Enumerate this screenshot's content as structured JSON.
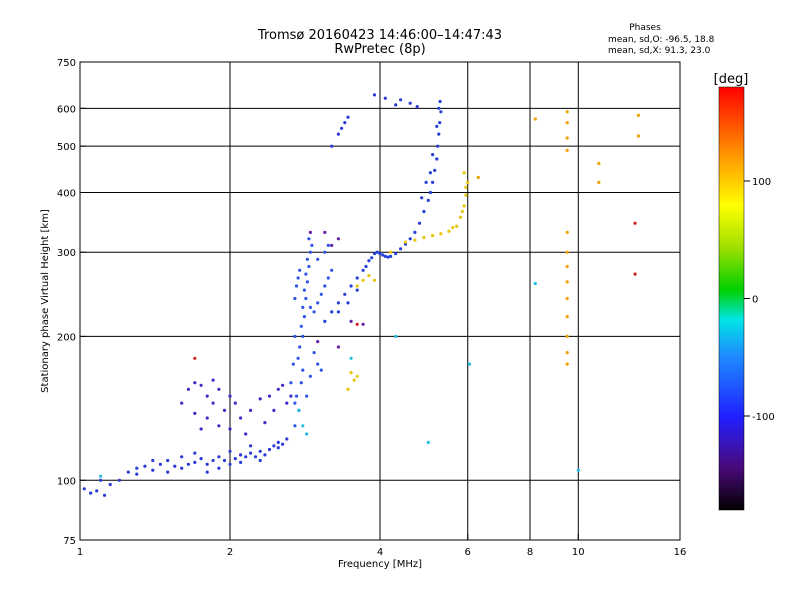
{
  "chart_data": {
    "type": "scatter",
    "title": "Tromsø 20160423 14:46:00–14:47:43",
    "subtitle": "RwPretec (8p)",
    "stats": {
      "heading": "Phases",
      "line_o": "mean, sd,O: -96.5, 18.8",
      "line_x": "mean, sd,X:  91.3, 23.0"
    },
    "xlabel": "Frequency [MHz]",
    "ylabel": "Stationary phase Virtual Height [km]",
    "x_scale": "log",
    "y_scale": "log",
    "xlim": [
      1,
      16
    ],
    "ylim": [
      75,
      750
    ],
    "x_ticks": [
      1,
      2,
      4,
      6,
      8,
      10,
      16
    ],
    "y_ticks": [
      75,
      100,
      200,
      300,
      400,
      500,
      600,
      750
    ],
    "x_grid": [
      2,
      4,
      6,
      8,
      10
    ],
    "y_grid": [
      100,
      200,
      300,
      400,
      500,
      600
    ],
    "grid": true,
    "colorbar": {
      "label": "[deg]",
      "range": [
        -180,
        180
      ],
      "ticks": [
        100,
        0,
        -100
      ],
      "placement": "right"
    },
    "series": [
      {
        "trace": "O-mode low (blue/purple)",
        "color": "#2a3bd8",
        "points": [
          [
            1.02,
            96
          ],
          [
            1.05,
            94
          ],
          [
            1.08,
            95
          ],
          [
            1.12,
            93
          ],
          [
            1.15,
            98
          ],
          [
            1.2,
            100
          ],
          [
            1.25,
            104
          ],
          [
            1.3,
            106
          ],
          [
            1.35,
            107
          ],
          [
            1.4,
            105
          ],
          [
            1.45,
            108
          ],
          [
            1.5,
            110
          ],
          [
            1.55,
            107
          ],
          [
            1.6,
            106
          ],
          [
            1.65,
            108
          ],
          [
            1.7,
            109
          ],
          [
            1.75,
            111
          ],
          [
            1.8,
            108
          ],
          [
            1.85,
            110
          ],
          [
            1.9,
            112
          ],
          [
            1.95,
            110
          ],
          [
            2.0,
            108
          ],
          [
            2.05,
            111
          ],
          [
            2.1,
            113
          ],
          [
            2.15,
            112
          ],
          [
            2.2,
            114
          ],
          [
            2.25,
            112
          ],
          [
            2.3,
            115
          ],
          [
            2.35,
            113
          ],
          [
            2.4,
            116
          ],
          [
            2.45,
            118
          ],
          [
            2.5,
            120
          ],
          [
            2.55,
            119
          ],
          [
            2.6,
            122
          ],
          [
            2.2,
            118
          ],
          [
            2.0,
            115
          ],
          [
            1.8,
            104
          ],
          [
            1.6,
            112
          ],
          [
            1.4,
            110
          ],
          [
            1.3,
            103
          ],
          [
            1.1,
            100
          ],
          [
            1.5,
            104
          ],
          [
            1.7,
            114
          ],
          [
            1.9,
            106
          ],
          [
            2.1,
            109
          ],
          [
            2.3,
            110
          ],
          [
            2.5,
            117
          ]
        ]
      },
      {
        "trace": "O-mode 130-170 km scatter",
        "color": "#3a2ec8",
        "points": [
          [
            1.65,
            155
          ],
          [
            1.7,
            160
          ],
          [
            1.75,
            158
          ],
          [
            1.8,
            150
          ],
          [
            1.85,
            145
          ],
          [
            1.9,
            155
          ],
          [
            1.95,
            140
          ],
          [
            2.0,
            150
          ],
          [
            1.8,
            135
          ],
          [
            1.9,
            130
          ],
          [
            2.05,
            145
          ],
          [
            2.1,
            135
          ],
          [
            1.75,
            128
          ],
          [
            2.2,
            140
          ],
          [
            2.3,
            148
          ],
          [
            2.4,
            150
          ],
          [
            2.5,
            155
          ],
          [
            2.55,
            158
          ],
          [
            2.45,
            140
          ],
          [
            2.35,
            132
          ],
          [
            1.6,
            145
          ],
          [
            1.7,
            138
          ],
          [
            2.0,
            128
          ],
          [
            2.15,
            125
          ],
          [
            2.6,
            145
          ],
          [
            2.65,
            150
          ],
          [
            1.85,
            162
          ]
        ]
      },
      {
        "trace": "O-mode near-vertical 2.6-3.2 MHz",
        "color": "#2f55e8",
        "points": [
          [
            2.7,
            130
          ],
          [
            2.75,
            140
          ],
          [
            2.72,
            150
          ],
          [
            2.78,
            160
          ],
          [
            2.8,
            170
          ],
          [
            2.74,
            180
          ],
          [
            2.76,
            190
          ],
          [
            2.8,
            200
          ],
          [
            2.78,
            210
          ],
          [
            2.82,
            220
          ],
          [
            2.8,
            230
          ],
          [
            2.84,
            240
          ],
          [
            2.82,
            250
          ],
          [
            2.86,
            260
          ],
          [
            2.84,
            270
          ],
          [
            2.88,
            280
          ],
          [
            2.86,
            290
          ],
          [
            2.9,
            300
          ],
          [
            2.92,
            310
          ],
          [
            2.88,
            320
          ],
          [
            2.7,
            240
          ],
          [
            2.72,
            255
          ],
          [
            2.74,
            265
          ],
          [
            2.76,
            275
          ],
          [
            2.9,
            230
          ],
          [
            2.95,
            225
          ],
          [
            3.0,
            235
          ],
          [
            3.05,
            245
          ],
          [
            3.1,
            255
          ],
          [
            3.15,
            265
          ],
          [
            3.2,
            275
          ],
          [
            3.0,
            290
          ],
          [
            3.1,
            300
          ],
          [
            3.15,
            310
          ],
          [
            2.95,
            185
          ],
          [
            3.0,
            175
          ],
          [
            3.05,
            170
          ],
          [
            2.9,
            165
          ],
          [
            2.85,
            150
          ],
          [
            2.7,
            145
          ],
          [
            2.65,
            160
          ],
          [
            2.68,
            175
          ],
          [
            2.7,
            200
          ]
        ]
      },
      {
        "trace": "O-mode rising F-layer",
        "color": "#2440d8",
        "points": [
          [
            3.1,
            215
          ],
          [
            3.2,
            225
          ],
          [
            3.3,
            235
          ],
          [
            3.4,
            245
          ],
          [
            3.5,
            255
          ],
          [
            3.6,
            265
          ],
          [
            3.7,
            275
          ],
          [
            3.75,
            280
          ],
          [
            3.8,
            288
          ],
          [
            3.85,
            292
          ],
          [
            3.9,
            298
          ],
          [
            3.95,
            300
          ],
          [
            4.0,
            298
          ],
          [
            4.05,
            296
          ],
          [
            4.1,
            294
          ],
          [
            4.15,
            293
          ],
          [
            4.2,
            294
          ],
          [
            4.3,
            298
          ],
          [
            4.4,
            305
          ],
          [
            4.5,
            312
          ],
          [
            4.6,
            320
          ],
          [
            4.7,
            330
          ],
          [
            4.8,
            345
          ],
          [
            4.9,
            365
          ],
          [
            5.0,
            385
          ],
          [
            5.05,
            400
          ],
          [
            5.1,
            420
          ],
          [
            5.15,
            445
          ],
          [
            5.2,
            470
          ],
          [
            5.22,
            500
          ],
          [
            5.25,
            530
          ],
          [
            5.27,
            560
          ],
          [
            5.3,
            590
          ],
          [
            5.28,
            620
          ],
          [
            5.25,
            600
          ],
          [
            5.2,
            550
          ],
          [
            5.1,
            480
          ],
          [
            5.05,
            440
          ],
          [
            4.95,
            420
          ],
          [
            4.85,
            390
          ],
          [
            3.6,
            250
          ],
          [
            3.45,
            235
          ],
          [
            3.3,
            225
          ]
        ]
      },
      {
        "trace": "high-altitude echoes 600 km",
        "color": "#2a3bd8",
        "points": [
          [
            3.3,
            530
          ],
          [
            3.35,
            545
          ],
          [
            3.4,
            560
          ],
          [
            3.45,
            575
          ],
          [
            3.2,
            500
          ],
          [
            3.9,
            640
          ],
          [
            4.1,
            630
          ],
          [
            4.3,
            610
          ],
          [
            4.4,
            625
          ],
          [
            4.6,
            615
          ],
          [
            4.75,
            605
          ]
        ]
      },
      {
        "trace": "X-mode (yellow/orange)",
        "color": "#e8c40a",
        "points": [
          [
            3.6,
            255
          ],
          [
            3.7,
            262
          ],
          [
            3.8,
            268
          ],
          [
            3.9,
            262
          ],
          [
            4.2,
            300
          ],
          [
            4.5,
            315
          ],
          [
            4.7,
            318
          ],
          [
            4.9,
            322
          ],
          [
            5.1,
            325
          ],
          [
            5.3,
            328
          ],
          [
            5.5,
            332
          ],
          [
            5.7,
            340
          ],
          [
            5.8,
            355
          ],
          [
            5.9,
            375
          ],
          [
            5.95,
            395
          ],
          [
            6.0,
            420
          ],
          [
            5.9,
            440
          ],
          [
            5.95,
            410
          ],
          [
            5.85,
            365
          ],
          [
            5.6,
            338
          ],
          [
            3.5,
            168
          ],
          [
            3.55,
            162
          ],
          [
            3.45,
            155
          ],
          [
            3.6,
            165
          ]
        ]
      },
      {
        "trace": "purple scatter",
        "color": "#6a1fa8",
        "points": [
          [
            3.2,
            310
          ],
          [
            3.3,
            320
          ],
          [
            3.1,
            330
          ],
          [
            2.9,
            330
          ],
          [
            3.5,
            215
          ],
          [
            3.7,
            212
          ],
          [
            3.0,
            195
          ],
          [
            3.3,
            190
          ]
        ]
      },
      {
        "trace": "cyan scatter",
        "color": "#22bde0",
        "points": [
          [
            2.75,
            140
          ],
          [
            2.8,
            130
          ],
          [
            2.85,
            125
          ],
          [
            3.5,
            180
          ],
          [
            4.3,
            200
          ],
          [
            5.0,
            120
          ],
          [
            6.05,
            175
          ],
          [
            8.2,
            258
          ],
          [
            10.0,
            105
          ],
          [
            1.1,
            102
          ]
        ]
      },
      {
        "trace": "orange vertical streaks",
        "color": "#f0a000",
        "points": [
          [
            9.5,
            590
          ],
          [
            9.5,
            560
          ],
          [
            9.5,
            520
          ],
          [
            9.5,
            490
          ],
          [
            9.5,
            330
          ],
          [
            9.5,
            300
          ],
          [
            9.5,
            280
          ],
          [
            9.5,
            260
          ],
          [
            9.5,
            240
          ],
          [
            9.5,
            220
          ],
          [
            9.5,
            200
          ],
          [
            9.5,
            185
          ],
          [
            9.5,
            175
          ],
          [
            8.2,
            570
          ],
          [
            6.3,
            430
          ],
          [
            11.0,
            420
          ],
          [
            11.0,
            460
          ],
          [
            13.2,
            525
          ],
          [
            13.2,
            580
          ]
        ]
      },
      {
        "trace": "red / green outliers",
        "color": "#d02020",
        "points": [
          [
            13.0,
            345
          ],
          [
            13.0,
            270
          ],
          [
            3.6,
            212
          ],
          [
            1.7,
            180
          ]
        ]
      }
    ]
  }
}
